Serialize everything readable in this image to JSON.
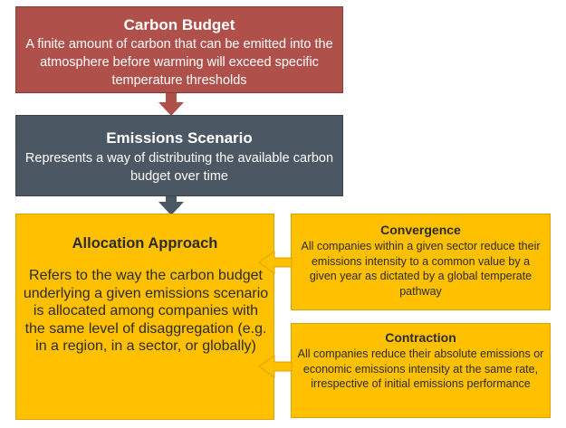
{
  "nodes": {
    "carbon_budget": {
      "title": "Carbon Budget",
      "desc": "A finite amount of carbon that can be emitted into the atmosphere before warming will exceed specific temperature thresholds"
    },
    "emissions_scenario": {
      "title": "Emissions Scenario",
      "desc": "Represents a way of distributing the available carbon budget over time"
    },
    "allocation_approach": {
      "title": "Allocation Approach",
      "desc": "Refers to the way the carbon budget underlying a given emissions scenario is allocated among companies with the same level of disaggregation (e.g. in a region, in a sector, or globally)"
    },
    "convergence": {
      "title": "Convergence",
      "desc": "All companies within a given sector reduce their emissions intensity to a common value by a given year as dictated by a global temperate pathway"
    },
    "contraction": {
      "title": "Contraction",
      "desc": "All companies reduce their absolute emissions or economic emissions intensity at the same rate, irrespective of initial emissions performance"
    }
  },
  "edges": [
    {
      "from": "carbon_budget",
      "to": "emissions_scenario"
    },
    {
      "from": "emissions_scenario",
      "to": "allocation_approach"
    },
    {
      "from": "convergence",
      "to": "allocation_approach"
    },
    {
      "from": "contraction",
      "to": "allocation_approach"
    }
  ],
  "colors": {
    "carbon_budget": "#b0504a",
    "emissions_scenario": "#4b5763",
    "allocation": "#ffc000",
    "text_dark": "#2b2b2b",
    "text_light": "#ffffff"
  }
}
